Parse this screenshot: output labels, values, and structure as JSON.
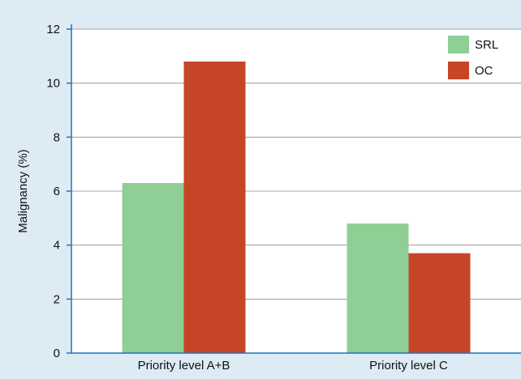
{
  "chart_data": {
    "type": "bar",
    "title": "",
    "xlabel": "",
    "ylabel": "Malignancy (%)",
    "categories": [
      "Priority level A+B",
      "Priority level C"
    ],
    "series": [
      {
        "name": "SRL",
        "color": "#8fcf95",
        "values": [
          6.3,
          4.8
        ]
      },
      {
        "name": "OC",
        "color": "#c64527",
        "values": [
          10.8,
          3.7
        ]
      }
    ],
    "ylim": [
      0,
      12
    ],
    "yticks": [
      0,
      2,
      4,
      6,
      8,
      10,
      12
    ],
    "grid": "horizontal",
    "legend_position": "top-right",
    "colors": {
      "background": "#dcebf4",
      "plot_background": "#ffffff",
      "axis": "#1e73be",
      "grid": "#8a8a8a"
    }
  }
}
